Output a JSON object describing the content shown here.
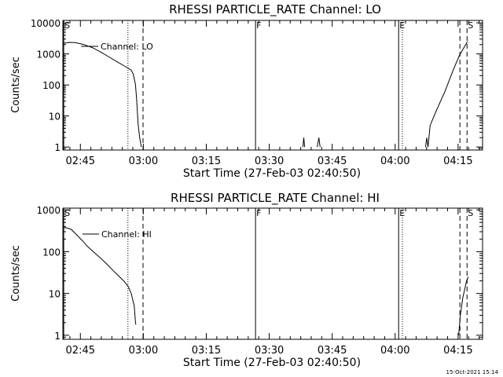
{
  "timestamp": "15-Oct-2021 15:14",
  "chart_data": [
    {
      "type": "line",
      "title": "RHESSI PARTICLE_RATE Channel: LO",
      "xlabel": "Start Time (27-Feb-03 02:40:50)",
      "ylabel": "Counts/sec",
      "yscale": "log",
      "xlim_minutes": [
        0,
        100
      ],
      "ylim": [
        0.8,
        12000
      ],
      "yticks": [
        1,
        10,
        100,
        1000,
        10000
      ],
      "ytick_labels": [
        "1",
        "10",
        "100",
        "1000",
        "10000"
      ],
      "xticks_minutes": [
        4.17,
        19.17,
        34.17,
        49.17,
        64.17,
        79.17,
        94.17
      ],
      "xtick_labels": [
        "02:45",
        "03:00",
        "03:15",
        "03:30",
        "03:45",
        "04:00",
        "04:15"
      ],
      "legend": "Channel: LO",
      "event_markers": [
        {
          "label": "S",
          "t": 0.2,
          "style": "solid"
        },
        {
          "label": "",
          "t": 15.5,
          "style": "dotted"
        },
        {
          "label": "",
          "t": 19.1,
          "style": "dashed"
        },
        {
          "label": "F",
          "t": 45.9,
          "style": "solid"
        },
        {
          "label": "E",
          "t": 80.0,
          "style": "solid"
        },
        {
          "label": "",
          "t": 80.9,
          "style": "dotted"
        },
        {
          "label": "",
          "t": 94.6,
          "style": "dashed"
        },
        {
          "label": "S",
          "t": 96.3,
          "style": "dashed"
        }
      ],
      "series": [
        {
          "name": "Channel: LO",
          "segments": [
            [
              [
                0.0,
                2200
              ],
              [
                1.5,
                2350
              ],
              [
                3.0,
                2300
              ],
              [
                5.0,
                2000
              ],
              [
                7.0,
                1600
              ],
              [
                9.0,
                1150
              ],
              [
                11.0,
                800
              ],
              [
                13.0,
                550
              ],
              [
                14.5,
                420
              ],
              [
                15.5,
                350
              ],
              [
                16.3,
                300
              ],
              [
                16.8,
                220
              ],
              [
                17.3,
                100
              ],
              [
                17.6,
                30
              ],
              [
                17.9,
                6
              ],
              [
                18.3,
                2
              ],
              [
                18.7,
                1
              ]
            ],
            [
              [
                57.2,
                1
              ],
              [
                57.4,
                2
              ],
              [
                57.6,
                1
              ]
            ],
            [
              [
                60.6,
                1
              ],
              [
                61.0,
                2
              ],
              [
                61.3,
                1
              ]
            ],
            [
              [
                86.4,
                1
              ],
              [
                86.7,
                2
              ],
              [
                87.0,
                1
              ],
              [
                87.5,
                5
              ],
              [
                89,
                15
              ],
              [
                91,
                60
              ],
              [
                93,
                300
              ],
              [
                94.5,
                900
              ],
              [
                96.4,
                2500
              ]
            ]
          ]
        }
      ]
    },
    {
      "type": "line",
      "title": "RHESSI PARTICLE_RATE Channel: HI",
      "xlabel": "Start Time (27-Feb-03 02:40:50)",
      "ylabel": "Counts/sec",
      "yscale": "log",
      "xlim_minutes": [
        0,
        100
      ],
      "ylim": [
        0.8,
        1100
      ],
      "yticks": [
        1,
        10,
        100,
        1000
      ],
      "ytick_labels": [
        "1",
        "10",
        "100",
        "1000"
      ],
      "xticks_minutes": [
        4.17,
        19.17,
        34.17,
        49.17,
        64.17,
        79.17,
        94.17
      ],
      "xtick_labels": [
        "02:45",
        "03:00",
        "03:15",
        "03:30",
        "03:45",
        "04:00",
        "04:15"
      ],
      "legend": "Channel: HI",
      "event_markers": [
        {
          "label": "S",
          "t": 0.2,
          "style": "solid"
        },
        {
          "label": "",
          "t": 15.5,
          "style": "dotted"
        },
        {
          "label": "",
          "t": 19.1,
          "style": "dashed"
        },
        {
          "label": "F",
          "t": 45.9,
          "style": "solid"
        },
        {
          "label": "E",
          "t": 80.0,
          "style": "solid"
        },
        {
          "label": "",
          "t": 80.9,
          "style": "dotted"
        },
        {
          "label": "",
          "t": 94.6,
          "style": "dashed"
        },
        {
          "label": "S",
          "t": 96.3,
          "style": "dashed"
        }
      ],
      "series": [
        {
          "name": "Channel: HI",
          "segments": [
            [
              [
                0.0,
                380
              ],
              [
                1.0,
                370
              ],
              [
                2.0,
                340
              ],
              [
                3.0,
                270
              ],
              [
                4.5,
                190
              ],
              [
                6.0,
                130
              ],
              [
                7.5,
                95
              ],
              [
                9.0,
                70
              ],
              [
                10.5,
                50
              ],
              [
                12.0,
                35
              ],
              [
                13.5,
                25
              ],
              [
                14.5,
                20
              ],
              [
                15.5,
                15
              ],
              [
                16.3,
                10
              ],
              [
                17.0,
                5
              ],
              [
                17.3,
                2
              ],
              [
                17.4,
                1.8
              ]
            ],
            [
              [
                94.3,
                1
              ],
              [
                94.7,
                3
              ],
              [
                95.3,
                8
              ],
              [
                96.2,
                20
              ],
              [
                96.6,
                25
              ]
            ]
          ]
        }
      ]
    }
  ]
}
